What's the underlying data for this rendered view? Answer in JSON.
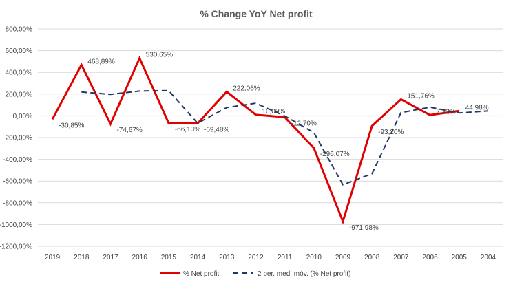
{
  "chart_data": {
    "type": "line",
    "title": "% Change YoY Net profit",
    "categories": [
      "2019",
      "2018",
      "2017",
      "2016",
      "2015",
      "2014",
      "2013",
      "2012",
      "2011",
      "2010",
      "2009",
      "2008",
      "2007",
      "2006",
      "2005",
      "2004"
    ],
    "ylim": [
      -1200,
      800
    ],
    "yticks": [
      800,
      600,
      400,
      200,
      0,
      -200,
      -400,
      -600,
      -800,
      -1000,
      -1200
    ],
    "ytick_labels": [
      "800,00%",
      "600,00%",
      "400,00%",
      "200,00%",
      "0,00%",
      "-200,00%",
      "-400,00%",
      "-600,00%",
      "-800,00%",
      "-1000,00%",
      "-1200,00%"
    ],
    "grid": true,
    "legend_position": "bottom",
    "series": [
      {
        "name": "% Net profit",
        "color": "#e00000",
        "style": "solid",
        "values": [
          -30.85,
          468.89,
          -74.67,
          530.65,
          -66.13,
          -69.48,
          222.06,
          10.09,
          -12.7,
          -296.07,
          -971.98,
          -93.2,
          151.76,
          7.22,
          44.98,
          null
        ],
        "labels": [
          "-30,85%",
          "468,89%",
          "-74,67%",
          "530,65%",
          "-66,13%",
          "-69,48%",
          "222,06%",
          "10,09%",
          "-12,70%",
          "-296,07%",
          "-971,98%",
          "-93,20%",
          "151,76%",
          "7,22%",
          "44,98%",
          ""
        ]
      },
      {
        "name": "2 per. med. móv. (% Net profit)",
        "color": "#1f3864",
        "style": "dashed",
        "values": [
          null,
          219.02,
          197.11,
          227.99,
          232.26,
          -67.81,
          76.29,
          116.08,
          -1.31,
          -154.39,
          -634.03,
          -532.59,
          29.28,
          79.49,
          26.1,
          44.98
        ]
      }
    ]
  }
}
